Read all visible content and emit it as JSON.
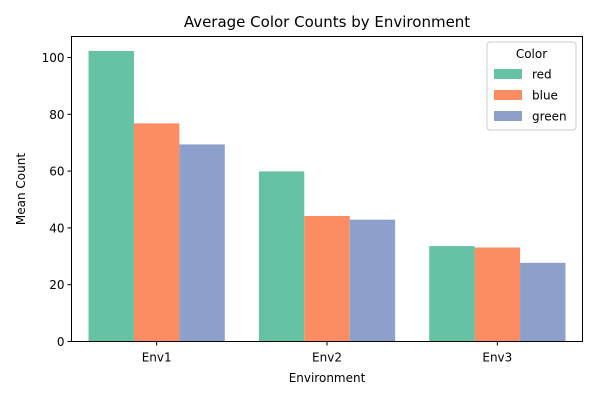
{
  "chart_data": {
    "type": "bar",
    "title": "Average Color Counts by Environment",
    "xlabel": "Environment",
    "ylabel": "Mean Count",
    "categories": [
      "Env1",
      "Env2",
      "Env3"
    ],
    "series": [
      {
        "name": "red",
        "color": "#66c2a5",
        "values": [
          102.3,
          59.9,
          33.6
        ]
      },
      {
        "name": "blue",
        "color": "#fc8d62",
        "values": [
          76.8,
          44.2,
          33.1
        ]
      },
      {
        "name": "green",
        "color": "#8da0cb",
        "values": [
          69.4,
          42.9,
          27.7
        ]
      }
    ],
    "ylim": [
      0,
      107.4
    ],
    "yticks": [
      0,
      20,
      40,
      60,
      80,
      100
    ],
    "legend": {
      "title": "Color",
      "position": "top-right"
    },
    "grid": false
  }
}
